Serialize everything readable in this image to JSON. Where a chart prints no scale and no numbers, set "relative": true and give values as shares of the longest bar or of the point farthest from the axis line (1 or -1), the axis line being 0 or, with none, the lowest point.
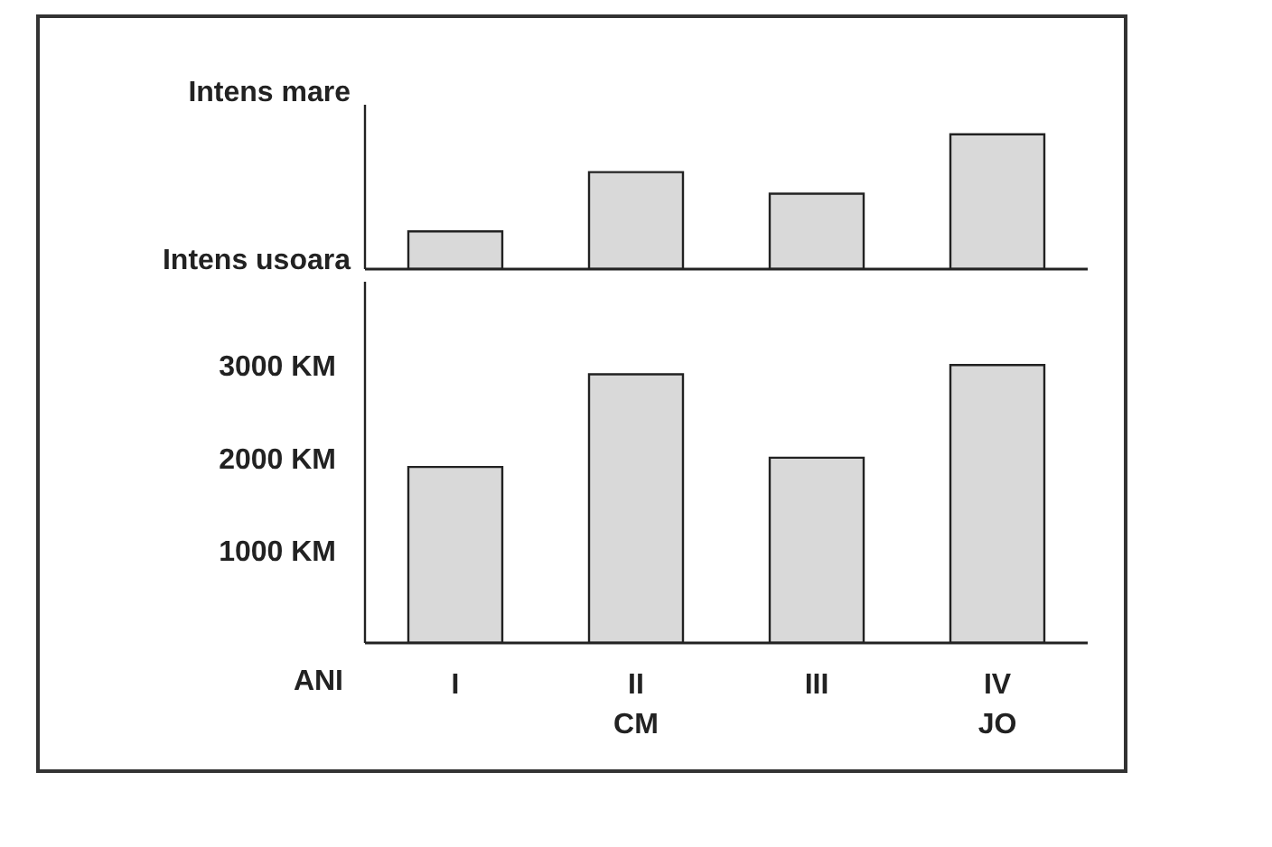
{
  "chart_data": [
    {
      "type": "bar",
      "relative": true,
      "categories": [
        null,
        null,
        null,
        null
      ],
      "values": [
        0.28,
        0.72,
        0.56,
        1
      ],
      "color": "#d9d9d9",
      "annotations": [
        "Intens usoara",
        "Intens mare"
      ]
    },
    {
      "type": "bar",
      "xlabel": "ANI",
      "categories": [
        "I",
        "II\nCM",
        "III",
        "IV\nJO"
      ],
      "values": [
        1900,
        2900,
        2000,
        3000
      ],
      "color": "#d9d9d9",
      "ylim": [
        0,
        3900
      ],
      "yticks": [
        {
          "value": 1000,
          "label": "1000 KM"
        },
        {
          "value": 2000,
          "label": "2000 KM"
        },
        {
          "value": 3000,
          "label": "3000 KM"
        }
      ]
    }
  ]
}
